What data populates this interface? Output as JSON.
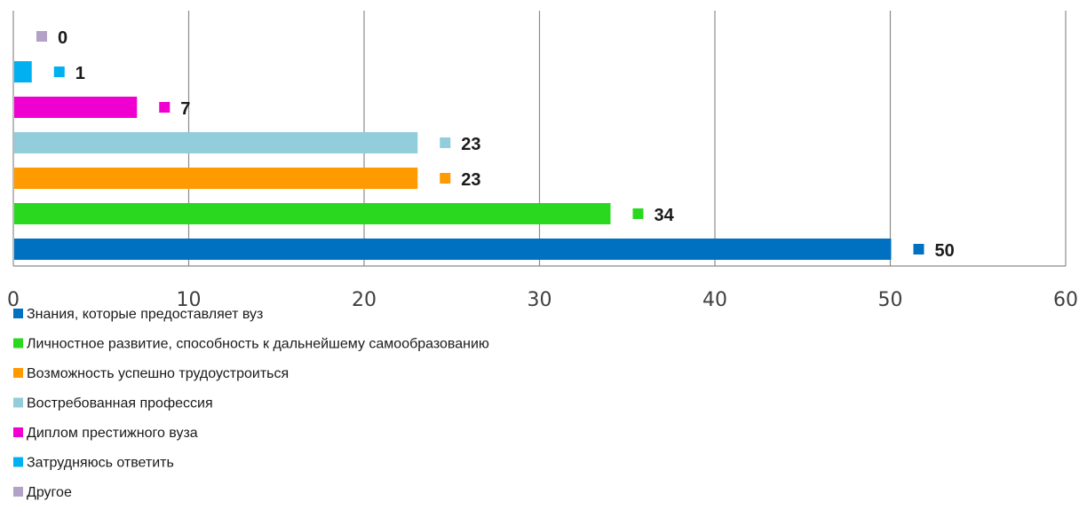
{
  "chart_data": {
    "type": "bar",
    "orientation": "horizontal",
    "title": "",
    "xlabel": "",
    "ylabel": "",
    "xlim": [
      0,
      60
    ],
    "x_ticks": [
      0,
      10,
      20,
      30,
      40,
      50,
      60
    ],
    "grid": true,
    "legend_position": "bottom-left",
    "series": [
      {
        "name": "Знания, которые предоставляет вуз",
        "value": 50,
        "label": "50",
        "color": "#0070C0"
      },
      {
        "name": "Личностное развитие, способность к дальнейшему самообразованию",
        "value": 34,
        "label": "34",
        "color": "#2BD820"
      },
      {
        "name": "Возможность успешно трудоустроиться",
        "value": 23,
        "label": "23",
        "color": "#FF9A00"
      },
      {
        "name": "Востребованная профессия",
        "value": 23,
        "label": "23",
        "color": "#92CDDC"
      },
      {
        "name": "Диплом престижного вуза",
        "value": 7,
        "label": "7",
        "color": "#F000D0"
      },
      {
        "name": "Затрудняюсь ответить",
        "value": 1,
        "label": "1",
        "color": "#00B0F0"
      },
      {
        "name": "Другое",
        "value": 0,
        "label": "0",
        "color": "#B2A2C7"
      }
    ]
  }
}
